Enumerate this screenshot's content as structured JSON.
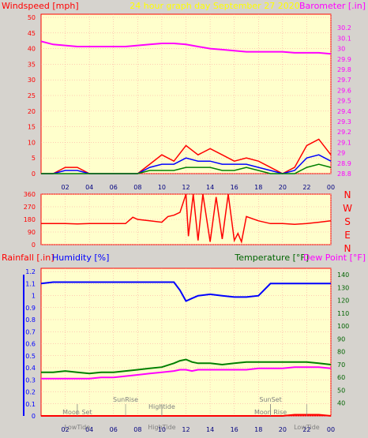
{
  "header": {
    "left_title": "Windspeed [mph]",
    "center_title": "24 hour graph day   September 27 2020",
    "right_title": "Barometer [.in]"
  },
  "colors": {
    "background": "#d6d3ce",
    "plot_bg": "#ffffcc",
    "grid": "#ff9999",
    "axis_red": "#ff0000",
    "magenta": "#ff00ff",
    "yellow": "#ffff00",
    "blue": "#0000ff",
    "green": "#008000",
    "darkgreen": "#006400"
  },
  "x_ticks": [
    "02",
    "04",
    "06",
    "08",
    "10",
    "12",
    "14",
    "16",
    "18",
    "20",
    "22",
    "00"
  ],
  "chart_data": [
    {
      "id": "wind",
      "type": "line",
      "ylabel_left": "Windspeed [mph]",
      "ylabel_right": "Barometer [.in]",
      "ylim_left": [
        0,
        50
      ],
      "ylim_right": [
        28.8,
        30.3
      ],
      "yticks_left": [
        "0",
        "5",
        "10",
        "15",
        "20",
        "25",
        "30",
        "35",
        "40",
        "45",
        "50"
      ],
      "yticks_right": [
        "28.8",
        "28.9",
        "29",
        "29.1",
        "29.2",
        "29.3",
        "29.4",
        "29.5",
        "29.6",
        "29.7",
        "29.8",
        "29.9",
        "30",
        "30.1",
        "30.2"
      ],
      "x_hours": [
        0,
        1,
        2,
        3,
        4,
        5,
        6,
        7,
        8,
        9,
        10,
        11,
        12,
        13,
        14,
        15,
        16,
        17,
        18,
        19,
        20,
        21,
        22,
        23,
        24
      ],
      "series": [
        {
          "axis": "right",
          "color": "#ff00ff",
          "values": [
            30.07,
            30.04,
            30.03,
            30.02,
            30.02,
            30.02,
            30.02,
            30.02,
            30.03,
            30.04,
            30.05,
            30.05,
            30.04,
            30.02,
            30.0,
            29.99,
            29.98,
            29.97,
            29.97,
            29.97,
            29.97,
            29.96,
            29.96,
            29.96,
            29.95
          ]
        },
        {
          "axis": "left",
          "color": "#ff0000",
          "values": [
            0,
            0,
            2,
            2,
            0,
            0,
            0,
            0,
            0,
            3,
            6,
            4,
            9,
            6,
            8,
            6,
            4,
            5,
            4,
            2,
            0,
            2,
            9,
            11,
            6
          ]
        },
        {
          "axis": "left",
          "color": "#0000ff",
          "values": [
            0,
            0,
            1,
            1,
            0,
            0,
            0,
            0,
            0,
            2,
            3,
            3,
            5,
            4,
            4,
            3,
            3,
            3,
            2,
            1,
            0,
            1,
            5,
            6,
            4
          ]
        },
        {
          "axis": "left",
          "color": "#008000",
          "values": [
            0,
            0,
            0,
            0,
            0,
            0,
            0,
            0,
            0,
            1,
            1,
            1,
            2,
            2,
            2,
            1,
            1,
            2,
            1,
            0,
            0,
            0,
            2,
            3,
            2
          ]
        }
      ]
    },
    {
      "id": "direction",
      "type": "line",
      "yticks_left": [
        "0",
        "90",
        "180",
        "270",
        "360"
      ],
      "ylim": [
        0,
        360
      ],
      "compass": [
        "N",
        "W",
        "S",
        "E",
        "N"
      ],
      "x_hours": [
        0,
        1,
        2,
        3,
        4,
        5,
        6,
        7,
        7.6,
        8,
        9,
        10,
        10.5,
        11,
        11.5,
        12,
        12.2,
        12.6,
        13,
        13.4,
        14,
        14.5,
        15,
        15.5,
        16,
        16.3,
        16.6,
        17,
        18,
        19,
        20,
        21,
        22,
        23,
        24
      ],
      "values": [
        150,
        150,
        150,
        148,
        150,
        150,
        150,
        150,
        195,
        180,
        170,
        160,
        200,
        210,
        230,
        360,
        60,
        360,
        30,
        360,
        20,
        340,
        40,
        360,
        30,
        80,
        20,
        200,
        170,
        150,
        150,
        145,
        150,
        160,
        170
      ]
    },
    {
      "id": "humidity",
      "type": "line",
      "ylabel_left_1": "Rainfall [.in]",
      "ylabel_left_2": "Humidity [%]",
      "ylabel_right_1": "Temperature [°F]",
      "ylabel_right_2": "Dew Point [°F]",
      "ylim_left": [
        0,
        1.2
      ],
      "ylim_right": [
        30,
        145
      ],
      "yticks_left": [
        "0",
        "0.1",
        "0.2",
        "0.3",
        "0.4",
        "0.5",
        "0.6",
        "0.7",
        "0.8",
        "0.9",
        "1",
        "1.1",
        "1.2"
      ],
      "yticks_right": [
        "40",
        "50",
        "60",
        "70",
        "80",
        "90",
        "100",
        "110",
        "120",
        "130",
        "140"
      ],
      "x_hours": [
        0,
        1,
        2,
        3,
        4,
        5,
        6,
        7,
        8,
        9,
        10,
        11,
        11.5,
        12,
        12.5,
        13,
        14,
        15,
        16,
        17,
        18,
        19,
        20,
        21,
        22,
        23,
        24
      ],
      "series": [
        {
          "name": "Humidity [%]",
          "axis": "humidity",
          "color": "#0000ff",
          "values": [
            98,
            99,
            99,
            99,
            99,
            99,
            99,
            99,
            99,
            99,
            99,
            99,
            93,
            85,
            87,
            89,
            90,
            89,
            88,
            88,
            89,
            98,
            98,
            98,
            98,
            98,
            98
          ]
        },
        {
          "name": "Temperature [°F]",
          "axis": "right",
          "color": "#008000",
          "values": [
            64,
            64,
            65,
            64,
            63,
            64,
            64,
            65,
            66,
            67,
            68,
            71,
            73,
            74,
            72,
            71,
            71,
            70,
            71,
            72,
            72,
            72,
            72,
            72,
            72,
            71,
            70
          ]
        },
        {
          "name": "Dew Point [°F]",
          "axis": "right",
          "color": "#ff00ff",
          "values": [
            59,
            59,
            59,
            59,
            59,
            60,
            60,
            61,
            62,
            63,
            64,
            65,
            66,
            66,
            65,
            66,
            66,
            66,
            66,
            66,
            67,
            67,
            67,
            68,
            68,
            68,
            67
          ]
        },
        {
          "name": "Rainfall [.in]",
          "axis": "left",
          "color": "#ff0000",
          "values": [
            0,
            0,
            0,
            0,
            0,
            0,
            0,
            0,
            0,
            0,
            0,
            0,
            0,
            0,
            0,
            0,
            0,
            0,
            0,
            0,
            0,
            0,
            0,
            0.01,
            0.01,
            0.01,
            0
          ]
        }
      ],
      "annotations": [
        {
          "text": "Moon Set",
          "hour": 3
        },
        {
          "text": "LowTide",
          "hour": 3
        },
        {
          "text": "SunRise",
          "hour": 7
        },
        {
          "text": "Hightide",
          "hour": 10
        },
        {
          "text": "HighTide",
          "hour": 10
        },
        {
          "text": "SunSet",
          "hour": 19
        },
        {
          "text": "Moon Rise",
          "hour": 19
        },
        {
          "text": "LowTide",
          "hour": 22
        }
      ]
    }
  ]
}
